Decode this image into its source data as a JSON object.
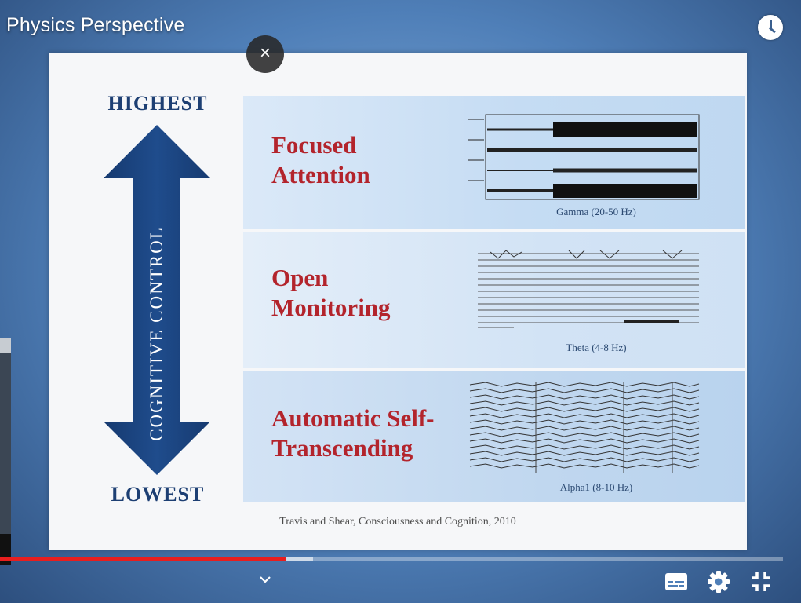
{
  "player": {
    "title": "Physics Perspective",
    "close_glyph": "×",
    "progress": {
      "played_fraction": 0.365,
      "buffered_fraction": 0.4
    },
    "icons": {
      "watch_later": "clock-icon",
      "close": "close-icon",
      "more": "chevron-down-icon",
      "captions": "subtitles-icon",
      "settings": "gear-icon",
      "exit_fullscreen": "exit-fullscreen-icon"
    },
    "colors": {
      "progress_played": "#e81e1e",
      "slide_heading": "#b3242c",
      "slide_navy": "#1d3f73"
    }
  },
  "slide": {
    "top_label": "HIGHEST",
    "bottom_label": "LOWEST",
    "axis_label": "COGNITIVE CONTROL",
    "panels": [
      {
        "heading_line1": "Focused",
        "heading_line2": "Attention",
        "caption": "Gamma (20-50 Hz)"
      },
      {
        "heading_line1": "Open",
        "heading_line2": "Monitoring",
        "caption": "Theta (4-8 Hz)"
      },
      {
        "heading_line1": "Automatic Self-",
        "heading_line2": "Transcending",
        "caption": "Alpha1 (8-10 Hz)"
      }
    ],
    "citation": "Travis and Shear, Consciousness and Cognition, 2010"
  }
}
